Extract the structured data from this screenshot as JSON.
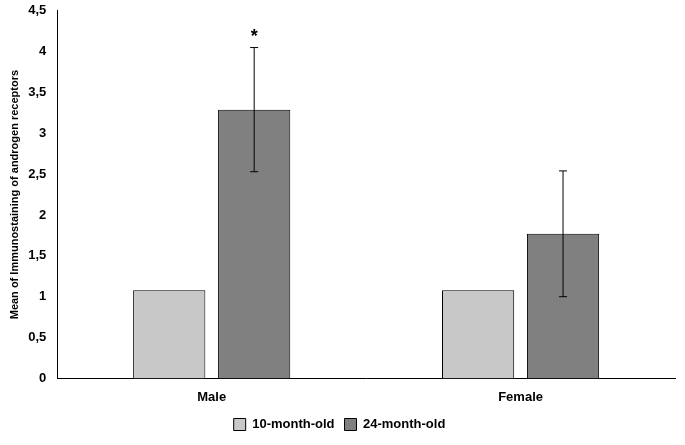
{
  "chart_data": {
    "type": "bar",
    "y_label": "Mean of Immunostaining of androgen receptors",
    "categories": [
      "Male",
      "Female"
    ],
    "series": [
      {
        "name": "10-month-old",
        "color": "#c8c8c8",
        "values": [
          1.08,
          1.08
        ],
        "errors": [
          null,
          null
        ]
      },
      {
        "name": "24-month-old",
        "color": "#808080",
        "values": [
          3.29,
          1.77
        ],
        "errors": [
          0.76,
          0.77
        ]
      }
    ],
    "annotations": [
      {
        "text": "*",
        "category": "Male",
        "series": "24-month-old"
      }
    ],
    "ylim": [
      0,
      4.5
    ],
    "yticks": [
      0,
      {
        "value": 0.5,
        "label": "0,5"
      },
      1,
      {
        "value": 1.5,
        "label": "1,5"
      },
      2,
      {
        "value": 2.5,
        "label": "2,5"
      },
      3,
      {
        "value": 3.5,
        "label": "3,5"
      },
      4,
      {
        "value": 4.5,
        "label": "4,5"
      }
    ],
    "grid": false,
    "legend": "bottom"
  }
}
